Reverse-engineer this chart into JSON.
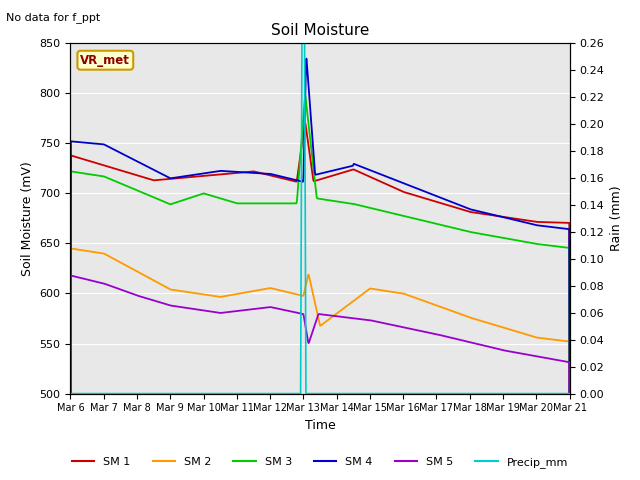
{
  "title": "Soil Moisture",
  "annotation": "No data for f_ppt",
  "ylabel_left": "Soil Moisture (mV)",
  "ylabel_right": "Rain (mm)",
  "xlabel": "Time",
  "ylim_left": [
    500,
    850
  ],
  "ylim_right": [
    0.0,
    0.26
  ],
  "yticks_left": [
    500,
    550,
    600,
    650,
    700,
    750,
    800,
    850
  ],
  "yticks_right": [
    0.0,
    0.02,
    0.04,
    0.06,
    0.08,
    0.1,
    0.12,
    0.14,
    0.16,
    0.18,
    0.2,
    0.22,
    0.24,
    0.26
  ],
  "x_labels": [
    "Mar 6",
    "Mar 7",
    "Mar 8",
    "Mar 9",
    "Mar 10",
    "Mar 11",
    "Mar 12",
    "Mar 13",
    "Mar 14",
    "Mar 15",
    "Mar 16",
    "Mar 17",
    "Mar 18",
    "Mar 19",
    "Mar 20",
    "Mar 21"
  ],
  "bg_color": "#e8e8e8",
  "fig_color": "#ffffff",
  "legend_entries": [
    "SM 1",
    "SM 2",
    "SM 3",
    "SM 4",
    "SM 5",
    "Precip_mm"
  ],
  "legend_colors": [
    "#cc0000",
    "#ff9900",
    "#00cc00",
    "#0000cc",
    "#9900cc",
    "#00cccc"
  ],
  "vr_met_text_color": "#8B0000",
  "vr_met_bg": "#ffffcc",
  "vr_met_edge": "#cc9900"
}
